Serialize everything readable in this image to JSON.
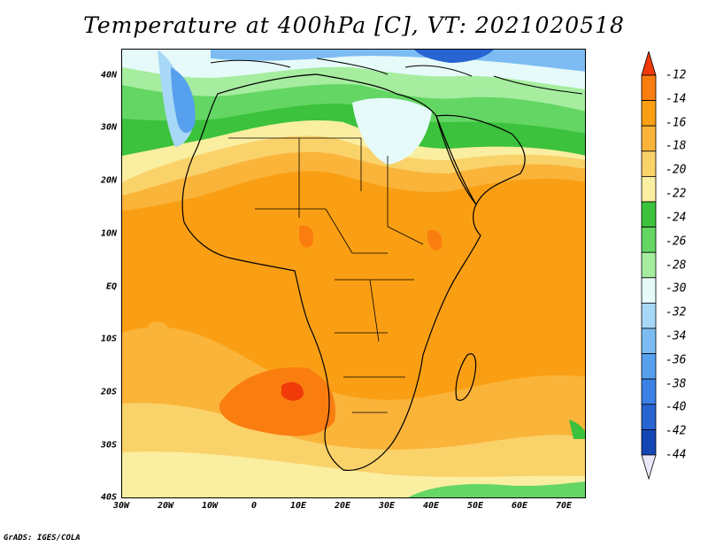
{
  "title": "Temperature at 400hPa [C], VT: 2021020518",
  "credit": "GrADS: IGES/COLA",
  "map": {
    "lat_ticks": [
      "40N",
      "30N",
      "20N",
      "10N",
      "EQ",
      "10S",
      "20S",
      "30S",
      "40S"
    ],
    "lon_ticks": [
      "30W",
      "20W",
      "10W",
      "0",
      "10E",
      "20E",
      "30E",
      "40E",
      "50E",
      "60E",
      "70E"
    ],
    "lat_range": [
      -40,
      45
    ],
    "lon_range": [
      -30,
      75
    ]
  },
  "colorbar": {
    "labels": [
      "-12",
      "-14",
      "-16",
      "-18",
      "-20",
      "-22",
      "-24",
      "-26",
      "-28",
      "-30",
      "-32",
      "-34",
      "-36",
      "-38",
      "-40",
      "-42",
      "-44"
    ],
    "colors": [
      "#f03a0a",
      "#fa7d10",
      "#fa9f14",
      "#fab43a",
      "#fad26a",
      "#faeea0",
      "#3cc23c",
      "#64d664",
      "#a6eda0",
      "#e6fafa",
      "#a8d8f7",
      "#7cbcf2",
      "#56a0ee",
      "#3c82e6",
      "#2864d2",
      "#1446b4",
      "#0a1e78"
    ]
  }
}
